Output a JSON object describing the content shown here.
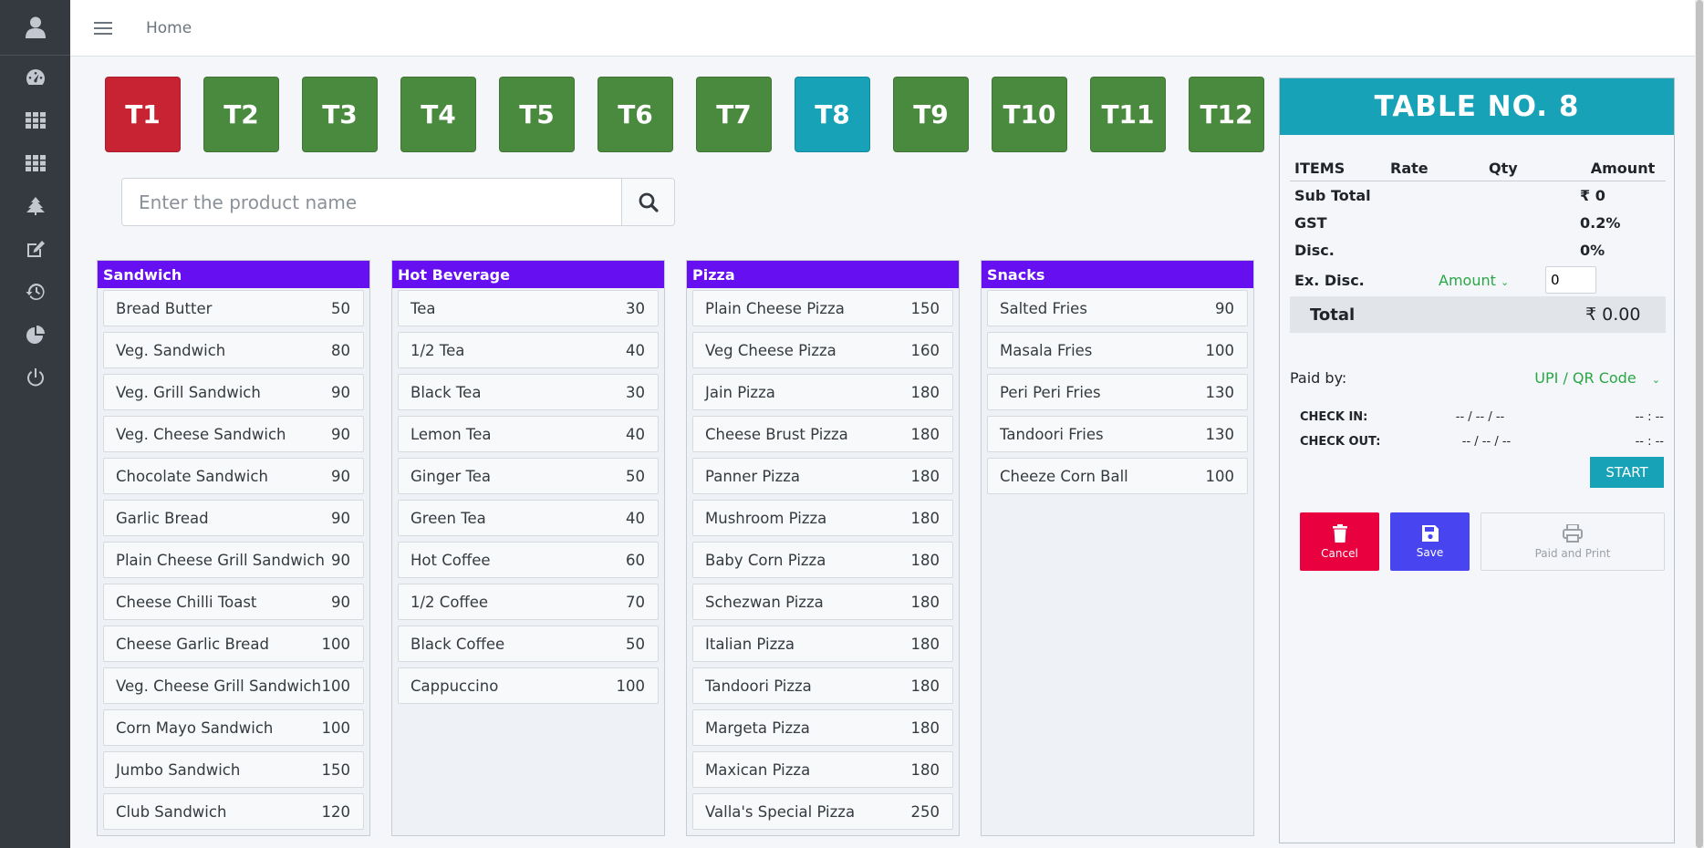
{
  "sidebar": {
    "items": [
      {
        "icon": "dashboard-icon"
      },
      {
        "icon": "grid-icon"
      },
      {
        "icon": "apps-icon"
      },
      {
        "icon": "tree-icon"
      },
      {
        "icon": "edit-icon"
      },
      {
        "icon": "history-icon"
      },
      {
        "icon": "pie-chart-icon"
      },
      {
        "icon": "power-icon"
      }
    ]
  },
  "topbar": {
    "home_label": "Home"
  },
  "tables": [
    {
      "label": "T1",
      "color": "#c82333"
    },
    {
      "label": "T2",
      "color": "#4a8a3e"
    },
    {
      "label": "T3",
      "color": "#4a8a3e"
    },
    {
      "label": "T4",
      "color": "#4a8a3e"
    },
    {
      "label": "T5",
      "color": "#4a8a3e"
    },
    {
      "label": "T6",
      "color": "#4a8a3e"
    },
    {
      "label": "T7",
      "color": "#4a8a3e"
    },
    {
      "label": "T8",
      "color": "#17a2b8"
    },
    {
      "label": "T9",
      "color": "#4a8a3e"
    },
    {
      "label": "T10",
      "color": "#4a8a3e"
    },
    {
      "label": "T11",
      "color": "#4a8a3e"
    },
    {
      "label": "T12",
      "color": "#4a8a3e"
    }
  ],
  "search": {
    "placeholder": "Enter the product name",
    "value": ""
  },
  "categories": [
    {
      "name": "Sandwich",
      "items": [
        {
          "name": "Bread Butter",
          "price": "50"
        },
        {
          "name": "Veg. Sandwich",
          "price": "80"
        },
        {
          "name": "Veg. Grill Sandwich",
          "price": "90"
        },
        {
          "name": "Veg. Cheese Sandwich",
          "price": "90"
        },
        {
          "name": "Chocolate Sandwich",
          "price": "90"
        },
        {
          "name": "Garlic Bread",
          "price": "90"
        },
        {
          "name": "Plain Cheese Grill Sandwich",
          "price": "90"
        },
        {
          "name": "Cheese Chilli Toast",
          "price": "90"
        },
        {
          "name": "Cheese Garlic Bread",
          "price": "100"
        },
        {
          "name": "Veg. Cheese Grill Sandwich",
          "price": "100"
        },
        {
          "name": "Corn Mayo Sandwich",
          "price": "100"
        },
        {
          "name": "Jumbo Sandwich",
          "price": "150"
        },
        {
          "name": "Club Sandwich",
          "price": "120"
        }
      ]
    },
    {
      "name": "Hot Beverage",
      "items": [
        {
          "name": "Tea",
          "price": "30"
        },
        {
          "name": "1/2 Tea",
          "price": "40"
        },
        {
          "name": "Black Tea",
          "price": "30"
        },
        {
          "name": "Lemon Tea",
          "price": "40"
        },
        {
          "name": "Ginger Tea",
          "price": "50"
        },
        {
          "name": "Green Tea",
          "price": "40"
        },
        {
          "name": "Hot Coffee",
          "price": "60"
        },
        {
          "name": "1/2 Coffee",
          "price": "70"
        },
        {
          "name": "Black Coffee",
          "price": "50"
        },
        {
          "name": "Cappuccino",
          "price": "100"
        }
      ]
    },
    {
      "name": "Pizza",
      "items": [
        {
          "name": "Plain Cheese Pizza",
          "price": "150"
        },
        {
          "name": "Veg Cheese Pizza",
          "price": "160"
        },
        {
          "name": "Jain Pizza",
          "price": "180"
        },
        {
          "name": "Cheese Brust Pizza",
          "price": "180"
        },
        {
          "name": "Panner Pizza",
          "price": "180"
        },
        {
          "name": "Mushroom Pizza",
          "price": "180"
        },
        {
          "name": "Baby Corn Pizza",
          "price": "180"
        },
        {
          "name": "Schezwan Pizza",
          "price": "180"
        },
        {
          "name": "Italian Pizza",
          "price": "180"
        },
        {
          "name": "Tandoori Pizza",
          "price": "180"
        },
        {
          "name": "Margeta Pizza",
          "price": "180"
        },
        {
          "name": "Maxican Pizza",
          "price": "180"
        },
        {
          "name": "Valla's Special Pizza",
          "price": "250"
        }
      ]
    },
    {
      "name": "Snacks",
      "items": [
        {
          "name": "Salted Fries",
          "price": "90"
        },
        {
          "name": "Masala Fries",
          "price": "100"
        },
        {
          "name": "Peri Peri Fries",
          "price": "130"
        },
        {
          "name": "Tandoori Fries",
          "price": "130"
        },
        {
          "name": "Cheeze Corn Ball",
          "price": "100"
        }
      ]
    }
  ],
  "order": {
    "title": "TABLE NO. 8",
    "headers": {
      "items": "ITEMS",
      "rate": "Rate",
      "qty": "Qty",
      "amount": "Amount"
    },
    "sub_total_label": "Sub Total",
    "sub_total_value": "₹ 0",
    "gst_label": "GST",
    "gst_value": "0.2%",
    "disc_label": "Disc.",
    "disc_value": "0%",
    "ex_disc_label": "Ex. Disc.",
    "ex_disc_type": "Amount",
    "ex_disc_value": "0",
    "total_label": "Total",
    "total_value": "₹ 0.00",
    "paid_by_label": "Paid by:",
    "paid_by_value": "UPI / QR Code",
    "check_in_label": "CHECK IN:",
    "check_in_date": "-- / -- / --",
    "check_in_time": "-- : --",
    "check_out_label": "CHECK OUT:",
    "check_out_date": "-- / -- / --",
    "check_out_time": "-- : --",
    "start_label": "START",
    "cancel_label": "Cancel",
    "save_label": "Save",
    "print_label": "Paid and Print"
  }
}
